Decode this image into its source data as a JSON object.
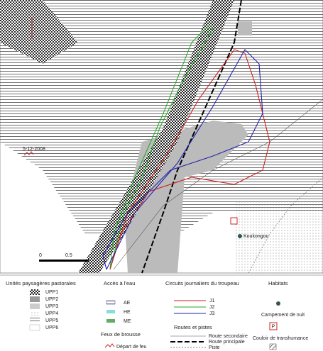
{
  "map": {
    "date_label": "5-12-2008",
    "place_label": "Koukongou",
    "scale_labels": [
      "0",
      "0.5"
    ]
  },
  "legend": {
    "landscape": {
      "title": "Unités paysagères pastorales",
      "items": [
        "UPP1",
        "UPP2",
        "UPP3",
        "UPP4",
        "UPP5",
        "UPP6"
      ]
    },
    "water": {
      "title": "Accès à l'eau",
      "items": [
        "AE",
        "HE",
        "ME"
      ]
    },
    "fire": {
      "title": "Feux de brousse",
      "item": "Départ de feu"
    },
    "circuits": {
      "title": "Circuits journaliers du troupeau",
      "items": [
        "J1",
        "J2",
        "J3"
      ]
    },
    "roads": {
      "title": "Routes et pistes",
      "items": [
        "Route secondaire",
        "Route principale",
        "Piste"
      ]
    },
    "habitats": {
      "title": "Habitats",
      "camp": "Campement de nuit",
      "camp_symbol": "P",
      "corridor": "Couloir de transhumance"
    }
  }
}
